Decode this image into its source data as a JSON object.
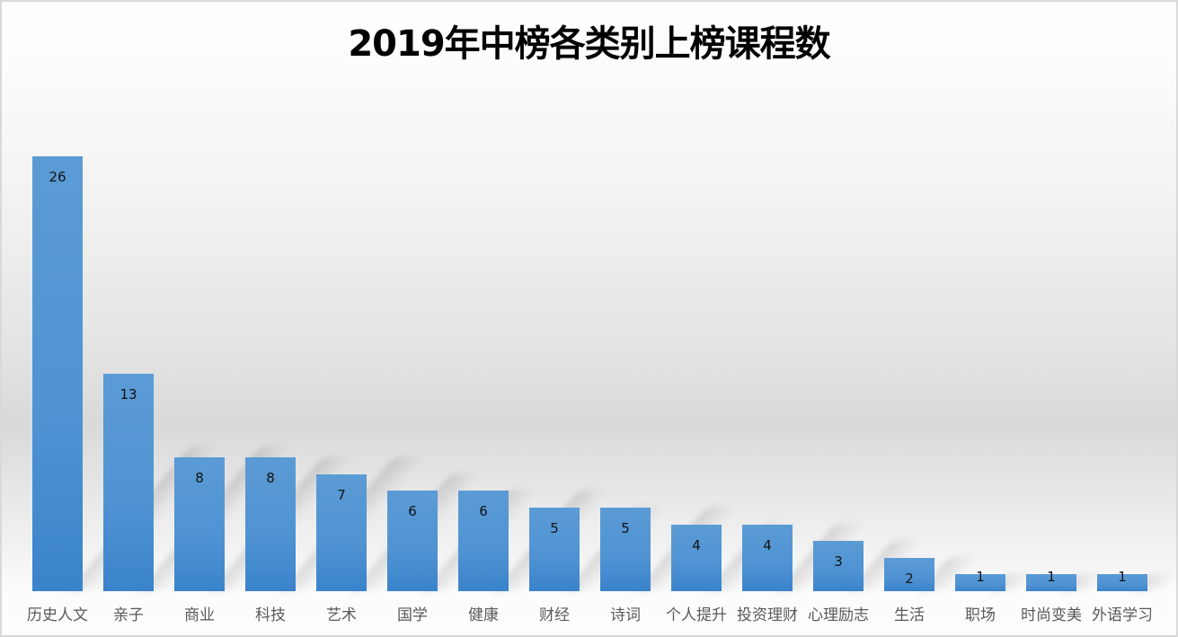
{
  "chart_data": {
    "type": "bar",
    "title": "2019年中榜各类别上榜课程数",
    "categories": [
      "历史人文",
      "亲子",
      "商业",
      "科技",
      "艺术",
      "国学",
      "健康",
      "财经",
      "诗词",
      "个人提升",
      "投资理财",
      "心理励志",
      "生活",
      "职场",
      "时尚变美",
      "外语学习"
    ],
    "values": [
      26,
      13,
      8,
      8,
      7,
      6,
      6,
      5,
      5,
      4,
      4,
      3,
      2,
      1,
      1,
      1
    ],
    "xlabel": "",
    "ylabel": "",
    "ylim": [
      0,
      26
    ],
    "grid": false,
    "legend": "none",
    "data_labels": true,
    "colors": {
      "bar_top": "#5b9bd5",
      "bar_bottom": "#3a83cb",
      "border": "#d9d9d9",
      "label_text": "#595959"
    }
  }
}
